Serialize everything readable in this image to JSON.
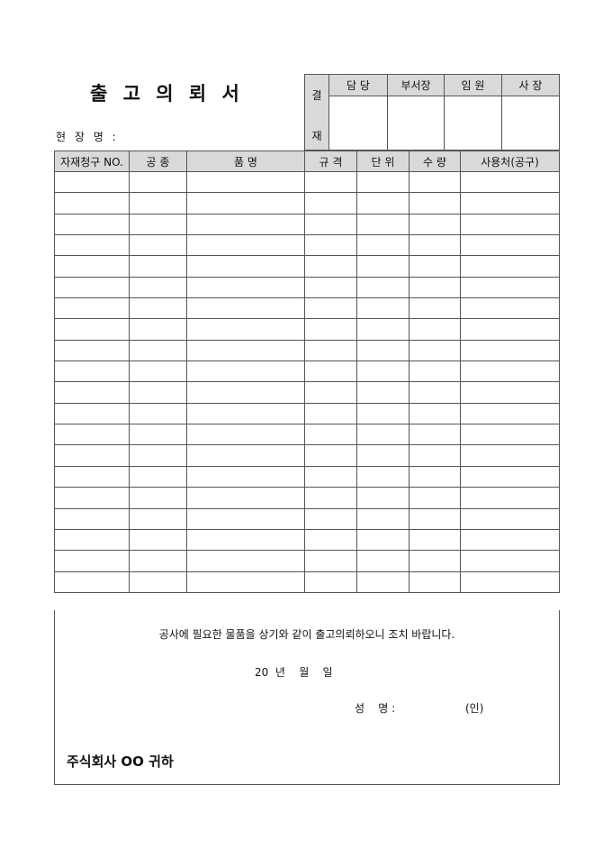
{
  "title": "출 고 의 뢰 서",
  "site_label": "현 장 명 :",
  "approval": {
    "label_top": "결",
    "label_bottom": "재",
    "roles": [
      "담 당",
      "부서장",
      "임 원",
      "사 장"
    ]
  },
  "table": {
    "headers": [
      "자재청구 NO.",
      "공 종",
      "품 명",
      "규 격",
      "단 위",
      "수 량",
      "사용처(공구)"
    ],
    "row_count": 20
  },
  "footer": {
    "request": "공사에 필요한 물품을 상기와 같이 출고의뢰하오니 조치 바랍니다.",
    "date": "20  년    월    일",
    "name_label": "성    명 :",
    "seal": "(인)",
    "recipient": "주식회사 OO  귀하"
  },
  "colors": {
    "header_bg": "#d9d9d9",
    "border": "#555555"
  }
}
